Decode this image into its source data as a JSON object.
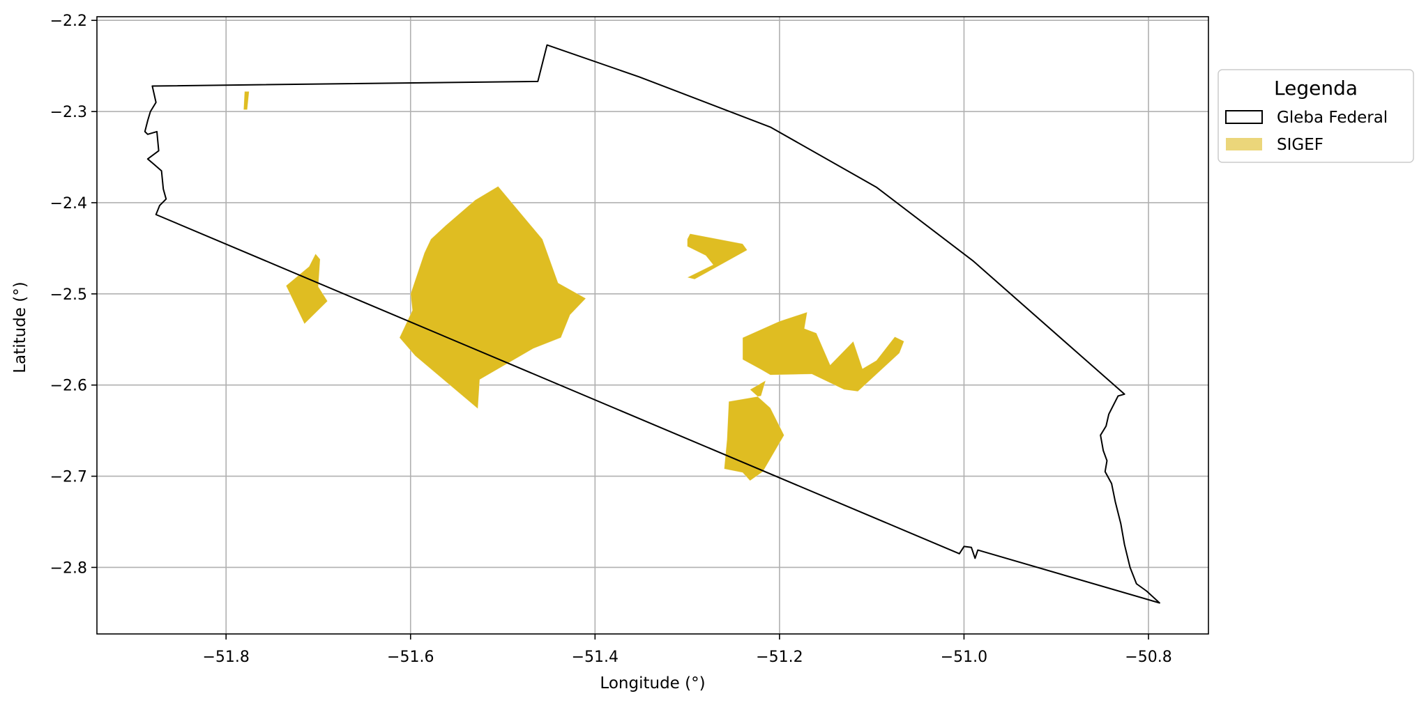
{
  "chart_data": {
    "type": "map",
    "title": "",
    "xlabel": "Longitude (°)",
    "ylabel": "Latitude (°)",
    "xlim": [
      -51.94,
      -50.735
    ],
    "ylim": [
      -2.873,
      -2.196
    ],
    "xticks": [
      -51.8,
      -51.6,
      -51.4,
      -51.2,
      -51.0,
      -50.8
    ],
    "xtick_labels": [
      "−51.8",
      "−51.6",
      "−51.4",
      "−51.2",
      "−51.0",
      "−50.8"
    ],
    "yticks": [
      -2.2,
      -2.3,
      -2.4,
      -2.5,
      -2.6,
      -2.7,
      -2.8
    ],
    "ytick_labels": [
      "−2.2",
      "−2.3",
      "−2.4",
      "−2.5",
      "−2.6",
      "−2.7",
      "−2.8"
    ],
    "grid": true,
    "legend": {
      "title": "Legenda",
      "placement": "right-outside-top",
      "entries": [
        {
          "label": "Gleba Federal",
          "style": "outline",
          "color": "#000000"
        },
        {
          "label": "SIGEF",
          "style": "fill",
          "color": "#ebd67a"
        }
      ]
    },
    "colors": {
      "gleba_outline": "#000000",
      "sigef_fill": "#dfbd22",
      "grid": "#b0b0b0"
    },
    "gleba_federal": [
      [
        -51.88,
        -2.272
      ],
      [
        -51.462,
        -2.267
      ],
      [
        -51.452,
        -2.227
      ],
      [
        -51.352,
        -2.262
      ],
      [
        -51.21,
        -2.317
      ],
      [
        -51.095,
        -2.383
      ],
      [
        -50.99,
        -2.464
      ],
      [
        -50.826,
        -2.61
      ],
      [
        -50.833,
        -2.612
      ],
      [
        -50.843,
        -2.632
      ],
      [
        -50.846,
        -2.645
      ],
      [
        -50.852,
        -2.655
      ],
      [
        -50.849,
        -2.672
      ],
      [
        -50.845,
        -2.683
      ],
      [
        -50.847,
        -2.695
      ],
      [
        -50.84,
        -2.708
      ],
      [
        -50.836,
        -2.728
      ],
      [
        -50.83,
        -2.752
      ],
      [
        -50.826,
        -2.775
      ],
      [
        -50.82,
        -2.8
      ],
      [
        -50.813,
        -2.818
      ],
      [
        -50.802,
        -2.826
      ],
      [
        -50.788,
        -2.839
      ],
      [
        -50.985,
        -2.781
      ],
      [
        -50.988,
        -2.79
      ],
      [
        -50.992,
        -2.778
      ],
      [
        -51.0,
        -2.777
      ],
      [
        -51.005,
        -2.785
      ],
      [
        -51.876,
        -2.413
      ],
      [
        -51.872,
        -2.403
      ],
      [
        -51.865,
        -2.396
      ],
      [
        -51.868,
        -2.385
      ],
      [
        -51.87,
        -2.365
      ],
      [
        -51.878,
        -2.358
      ],
      [
        -51.885,
        -2.352
      ],
      [
        -51.873,
        -2.343
      ],
      [
        -51.875,
        -2.322
      ],
      [
        -51.885,
        -2.325
      ],
      [
        -51.888,
        -2.322
      ],
      [
        -51.885,
        -2.31
      ],
      [
        -51.882,
        -2.3
      ],
      [
        -51.876,
        -2.29
      ],
      [
        -51.88,
        -2.272
      ]
    ],
    "sigef": [
      [
        [
          -51.78,
          -2.278
        ],
        [
          -51.775,
          -2.278
        ],
        [
          -51.777,
          -2.298
        ],
        [
          -51.781,
          -2.298
        ]
      ],
      [
        [
          -51.735,
          -2.491
        ],
        [
          -51.71,
          -2.47
        ],
        [
          -51.703,
          -2.456
        ],
        [
          -51.698,
          -2.462
        ],
        [
          -51.7,
          -2.492
        ],
        [
          -51.69,
          -2.508
        ],
        [
          -51.715,
          -2.533
        ]
      ],
      [
        [
          -51.598,
          -2.518
        ],
        [
          -51.6,
          -2.5
        ],
        [
          -51.585,
          -2.455
        ],
        [
          -51.578,
          -2.44
        ],
        [
          -51.562,
          -2.425
        ],
        [
          -51.53,
          -2.397
        ],
        [
          -51.505,
          -2.382
        ],
        [
          -51.457,
          -2.44
        ],
        [
          -51.44,
          -2.488
        ],
        [
          -51.41,
          -2.505
        ],
        [
          -51.427,
          -2.523
        ],
        [
          -51.437,
          -2.548
        ],
        [
          -51.467,
          -2.56
        ],
        [
          -51.525,
          -2.594
        ],
        [
          -51.527,
          -2.626
        ],
        [
          -51.595,
          -2.568
        ],
        [
          -51.612,
          -2.548
        ]
      ],
      [
        [
          -51.3,
          -2.44
        ],
        [
          -51.297,
          -2.434
        ],
        [
          -51.24,
          -2.445
        ],
        [
          -51.235,
          -2.452
        ],
        [
          -51.292,
          -2.484
        ],
        [
          -51.3,
          -2.482
        ],
        [
          -51.272,
          -2.468
        ],
        [
          -51.28,
          -2.458
        ],
        [
          -51.3,
          -2.448
        ]
      ],
      [
        [
          -51.24,
          -2.548
        ],
        [
          -51.2,
          -2.53
        ],
        [
          -51.17,
          -2.52
        ],
        [
          -51.173,
          -2.538
        ],
        [
          -51.16,
          -2.543
        ],
        [
          -51.145,
          -2.578
        ],
        [
          -51.12,
          -2.552
        ],
        [
          -51.11,
          -2.582
        ],
        [
          -51.095,
          -2.573
        ],
        [
          -51.075,
          -2.547
        ],
        [
          -51.065,
          -2.552
        ],
        [
          -51.07,
          -2.565
        ],
        [
          -51.115,
          -2.607
        ],
        [
          -51.13,
          -2.605
        ],
        [
          -51.165,
          -2.588
        ],
        [
          -51.21,
          -2.589
        ],
        [
          -51.22,
          -2.583
        ],
        [
          -51.24,
          -2.572
        ]
      ],
      [
        [
          -51.232,
          -2.605
        ],
        [
          -51.215,
          -2.595
        ],
        [
          -51.22,
          -2.612
        ],
        [
          -51.255,
          -2.618
        ],
        [
          -51.257,
          -2.66
        ],
        [
          -51.26,
          -2.692
        ],
        [
          -51.24,
          -2.696
        ],
        [
          -51.232,
          -2.705
        ],
        [
          -51.218,
          -2.695
        ],
        [
          -51.195,
          -2.655
        ],
        [
          -51.21,
          -2.625
        ]
      ]
    ]
  }
}
